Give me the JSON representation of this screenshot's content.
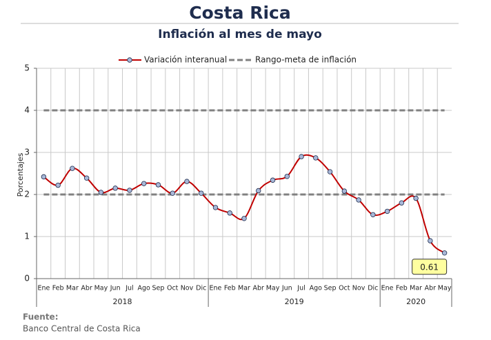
{
  "chart_data": {
    "type": "line",
    "title": "Costa Rica",
    "subtitle": "Inflación al mes de mayo",
    "y_label": "Porcentajes",
    "categories": [
      "Ene",
      "Feb",
      "Mar",
      "Abr",
      "May",
      "Jun",
      "Jul",
      "Ago",
      "Sep",
      "Oct",
      "Nov",
      "Dic",
      "Ene",
      "Feb",
      "Mar",
      "Abr",
      "May",
      "Jun",
      "Jul",
      "Ago",
      "Sep",
      "Oct",
      "Nov",
      "Dic",
      "Ene",
      "Feb",
      "Mar",
      "Abr",
      "May"
    ],
    "groups": [
      {
        "label": "2018",
        "span": 12
      },
      {
        "label": "2019",
        "span": 12
      },
      {
        "label": "2020",
        "span": 5
      }
    ],
    "series": [
      {
        "name": "Variación interanual",
        "color": "#c00000",
        "values": [
          2.42,
          2.22,
          2.62,
          2.39,
          2.05,
          2.15,
          2.1,
          2.26,
          2.23,
          2.03,
          2.31,
          2.03,
          1.69,
          1.56,
          1.43,
          2.09,
          2.34,
          2.43,
          2.9,
          2.87,
          2.54,
          2.08,
          1.87,
          1.52,
          1.6,
          1.8,
          1.91,
          0.9,
          0.61
        ]
      }
    ],
    "reference_lines": {
      "name": "Rango-meta de inflación",
      "color": "#808080",
      "values": [
        2,
        4
      ]
    },
    "ylim": [
      0,
      5
    ],
    "yticks": [
      0,
      1,
      2,
      3,
      4,
      5
    ],
    "grid": true,
    "source_heading": "Fuente:",
    "source": "Banco Central de Costa Rica"
  }
}
